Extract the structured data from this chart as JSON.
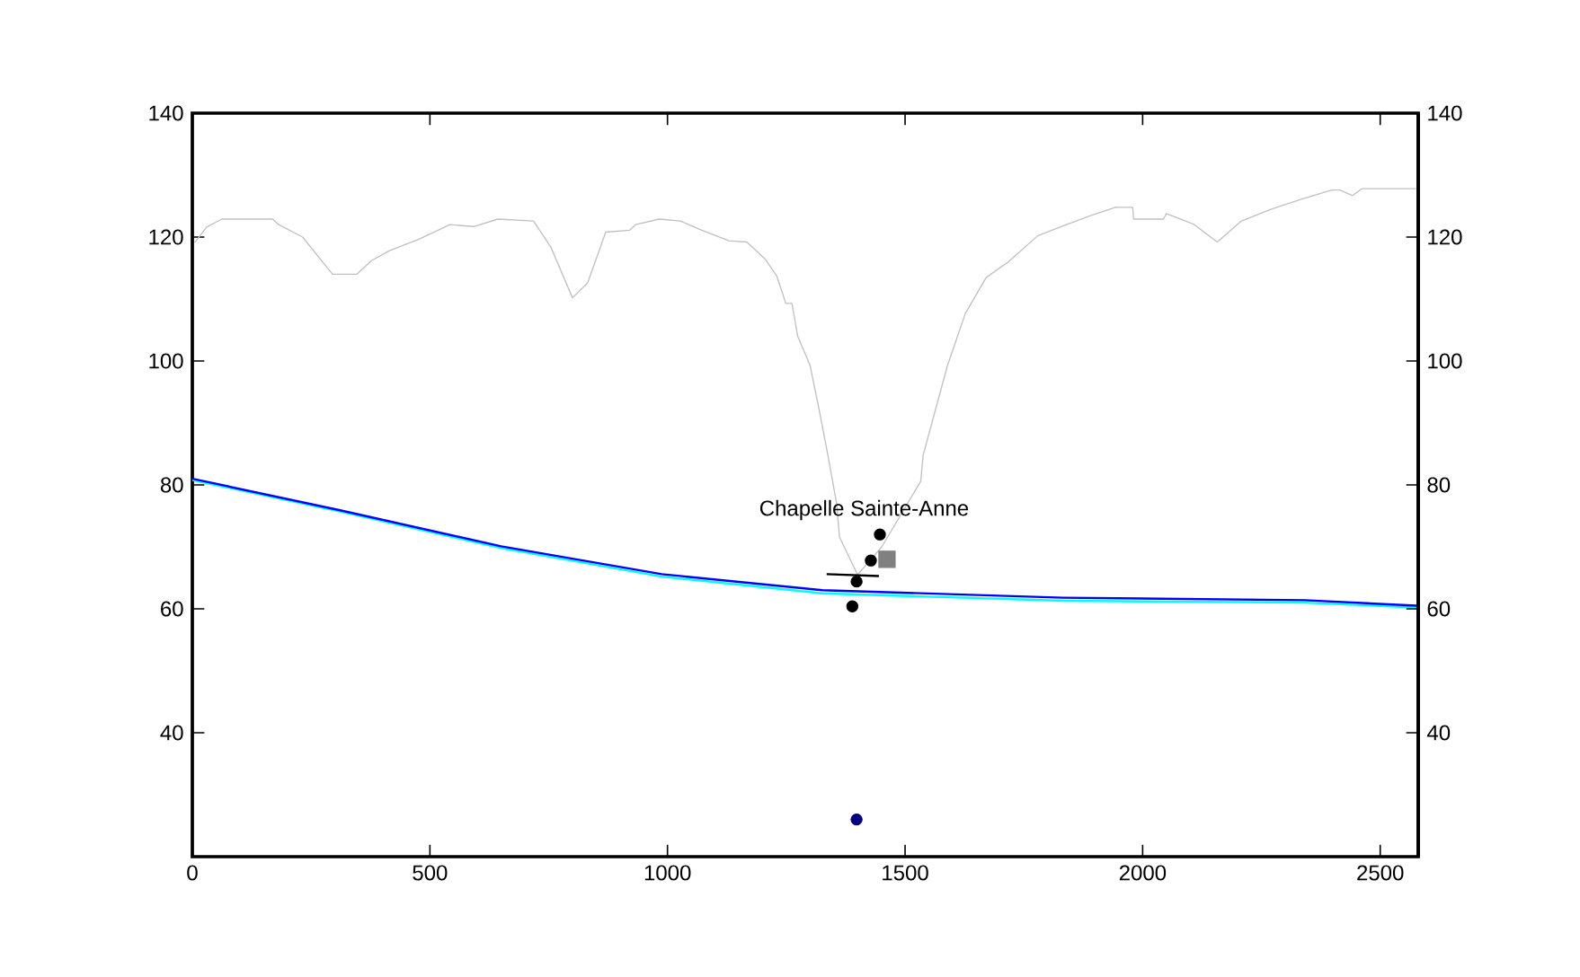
{
  "chart_data": {
    "type": "line",
    "xlim": [
      0,
      2580
    ],
    "ylim": [
      20,
      140
    ],
    "y2lim": [
      20,
      140
    ],
    "xticks": [
      0,
      500,
      1000,
      1500,
      2000,
      2500
    ],
    "yticks": [
      40,
      60,
      80,
      100,
      120,
      140
    ],
    "y2ticks": [
      40,
      60,
      80,
      100,
      120,
      140
    ],
    "grid": false,
    "annotations": [
      "Chapelle Sainte-Anne"
    ],
    "series": [
      {
        "color": "#c0c0c0",
        "x": [
          5,
          30,
          62,
          169,
          182,
          232,
          295,
          346,
          377,
          415,
          478,
          542,
          592,
          643,
          718,
          755,
          800,
          832,
          870,
          920,
          933,
          982,
          1027,
          1072,
          1129,
          1167,
          1205,
          1230,
          1249,
          1262,
          1274,
          1300,
          1318,
          1337,
          1356,
          1362,
          1400,
          1451,
          1533,
          1538,
          1589,
          1627,
          1671,
          1716,
          1779,
          1842,
          1892,
          1943,
          1979,
          1981,
          2044,
          2050,
          2107,
          2157,
          2208,
          2271,
          2334,
          2398,
          2415,
          2442,
          2461,
          2575
        ],
        "values": [
          119.1,
          121.6,
          122.9,
          122.9,
          122,
          120,
          114,
          114,
          116.2,
          117.8,
          119.7,
          122,
          121.7,
          122.9,
          122.6,
          118.3,
          110.2,
          112.6,
          120.8,
          121.1,
          122,
          122.9,
          122.6,
          121.1,
          119.4,
          119.2,
          116.5,
          113.7,
          109.3,
          109.3,
          104,
          99.3,
          92.6,
          85,
          77,
          71.6,
          65.5,
          70,
          80.6,
          84.8,
          99.2,
          107.7,
          113.5,
          115.9,
          120.2,
          122.1,
          123.5,
          124.8,
          124.8,
          122.9,
          122.9,
          123.8,
          122.1,
          119.2,
          122.6,
          124.5,
          126.1,
          127.6,
          127.6,
          126.7,
          127.8,
          127.8
        ]
      },
      {
        "color": "#00ffff",
        "x": [
          0,
          311,
          650,
          988,
          1326,
          1833,
          2341,
          2577
        ],
        "values": [
          80.8,
          75.7,
          69.8,
          65.2,
          62.5,
          61.3,
          61.0,
          60.2
        ]
      },
      {
        "color": "#0000ff",
        "x": [
          0,
          311,
          650,
          988,
          1326,
          1833,
          2341,
          2577
        ],
        "values": [
          81.0,
          75.9,
          70.1,
          65.6,
          63.0,
          61.8,
          61.4,
          60.5
        ]
      },
      {
        "color": "#000000",
        "x": [
          1335,
          1445
        ],
        "values": [
          65.6,
          65.3
        ]
      },
      {
        "type": "scatter",
        "color": "#808080",
        "marker": "square",
        "x": [
          1462
        ],
        "values": [
          68
        ]
      },
      {
        "type": "scatter",
        "color": "#000000",
        "marker": "circle",
        "x": [
          1447,
          1428,
          1398,
          1389
        ],
        "values": [
          72.0,
          67.8,
          64.4,
          60.4
        ]
      },
      {
        "type": "scatter",
        "color": "#000080",
        "marker": "circle",
        "x": [
          1398
        ],
        "values": [
          26
        ]
      }
    ]
  }
}
